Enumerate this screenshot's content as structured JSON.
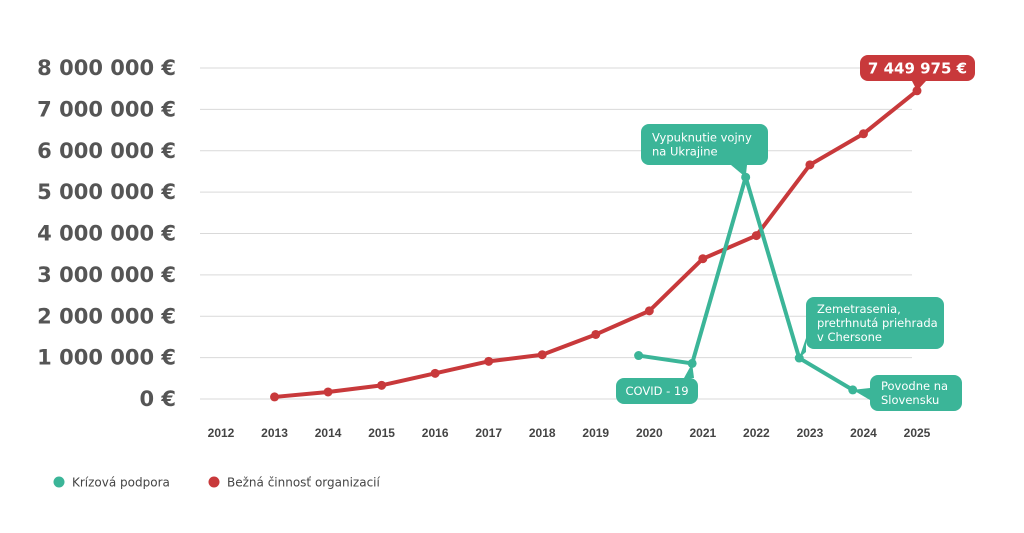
{
  "chart_data": {
    "type": "line",
    "title": "",
    "xlabel": "",
    "ylabel": "",
    "categories": [
      "2012",
      "2013",
      "2014",
      "2015",
      "2016",
      "2017",
      "2018",
      "2019",
      "2020",
      "2021",
      "2022",
      "2023",
      "2024",
      "2025"
    ],
    "ylim": [
      0,
      8000000
    ],
    "y_ticks": [
      {
        "value": 0,
        "label": "0 €"
      },
      {
        "value": 1000000,
        "label": "1 000 000 €"
      },
      {
        "value": 2000000,
        "label": "2 000 000 €"
      },
      {
        "value": 3000000,
        "label": "3 000 000 €"
      },
      {
        "value": 4000000,
        "label": "4 000 000 €"
      },
      {
        "value": 5000000,
        "label": "5 000 000 €"
      },
      {
        "value": 6000000,
        "label": "6 000 000 €"
      },
      {
        "value": 7000000,
        "label": "7 000 000 €"
      },
      {
        "value": 8000000,
        "label": "8 000 000 €"
      }
    ],
    "grid": true,
    "series": [
      {
        "name": "Bežná činnosť organizacií",
        "color": "#c8393b",
        "x": [
          2013,
          2014,
          2015,
          2016,
          2017,
          2018,
          2019,
          2020,
          2021,
          2022,
          2023,
          2024,
          2025
        ],
        "values": [
          50000,
          170000,
          330000,
          620000,
          910000,
          1070000,
          1560000,
          2130000,
          3390000,
          3950000,
          5660000,
          6410000,
          7449975
        ]
      },
      {
        "name": "Krízová podpora",
        "color": "#3bb598",
        "x": [
          2019.8,
          2020.8,
          2021.8,
          2022.8,
          2023.8
        ],
        "values": [
          1050000,
          860000,
          5360000,
          990000,
          220000
        ]
      }
    ],
    "annotations": [
      {
        "id": "covid",
        "color": "#3bb598",
        "lines": [
          "COVID - 19"
        ]
      },
      {
        "id": "war",
        "color": "#3bb598",
        "lines": [
          "Vypuknutie vojny",
          "na Ukrajine"
        ]
      },
      {
        "id": "quake",
        "color": "#3bb598",
        "lines": [
          "Zemetrasenia,",
          "pretrhnutá priehrada",
          "v Chersone"
        ]
      },
      {
        "id": "flood",
        "color": "#3bb598",
        "lines": [
          "Povodne na",
          "Slovensku"
        ]
      },
      {
        "id": "last",
        "color": "#c8393b",
        "lines": [
          "7 449 975 €"
        ]
      }
    ],
    "legend": {
      "position": "bottom-left",
      "items": [
        {
          "label": "Krízová podpora",
          "color": "#3bb598"
        },
        {
          "label": "Bežná činnosť organizacií",
          "color": "#c8393b"
        }
      ]
    }
  }
}
